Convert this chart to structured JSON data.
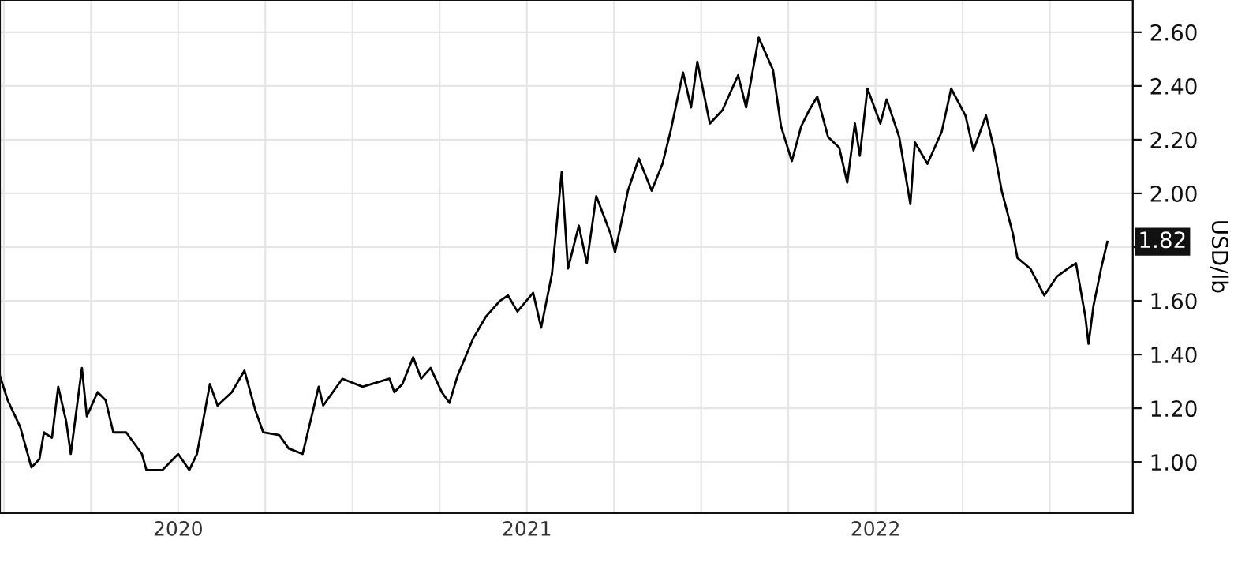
{
  "chart_data": {
    "type": "line",
    "x": [
      2019.989,
      2020.011,
      2020.047,
      2020.079,
      2020.102,
      2020.115,
      2020.138,
      2020.156,
      2020.179,
      2020.192,
      2020.224,
      2020.238,
      2020.269,
      2020.292,
      2020.314,
      2020.351,
      2020.396,
      2020.409,
      2020.455,
      2020.5,
      2020.532,
      2020.554,
      2020.591,
      2020.613,
      2020.654,
      2020.69,
      2020.722,
      2020.744,
      2020.79,
      2020.817,
      2020.857,
      2020.903,
      2020.916,
      2020.971,
      2021.029,
      2021.106,
      2021.12,
      2021.143,
      2021.174,
      2021.197,
      2021.224,
      2021.256,
      2021.278,
      2021.301,
      2021.346,
      2021.382,
      2021.423,
      2021.446,
      2021.473,
      2021.518,
      2021.541,
      2021.572,
      2021.6,
      2021.618,
      2021.649,
      2021.672,
      2021.699,
      2021.74,
      2021.753,
      2021.79,
      2021.821,
      2021.858,
      2021.889,
      2021.912,
      2021.948,
      2021.971,
      2021.989,
      2022.025,
      2022.061,
      2022.106,
      2022.129,
      2022.165,
      2022.206,
      2022.229,
      2022.26,
      2022.287,
      2022.31,
      2022.333,
      2022.364,
      2022.396,
      2022.419,
      2022.441,
      2022.455,
      2022.477,
      2022.514,
      2022.532,
      2022.568,
      2022.6,
      2022.613,
      2022.649,
      2022.69,
      2022.717,
      2022.758,
      2022.781,
      2022.817,
      2022.839,
      2022.862,
      2022.894,
      2022.907,
      2022.944,
      2022.984,
      2023.02,
      2023.052,
      2023.075,
      2023.102,
      2023.111,
      2023.125,
      2023.147,
      2023.165
    ],
    "series": [
      {
        "color": "#000000",
        "values": [
          1.32,
          1.23,
          1.13,
          0.98,
          1.01,
          1.11,
          1.09,
          1.28,
          1.15,
          1.03,
          1.35,
          1.17,
          1.26,
          1.23,
          1.11,
          1.11,
          1.03,
          0.97,
          0.97,
          1.03,
          0.97,
          1.03,
          1.29,
          1.21,
          1.26,
          1.34,
          1.19,
          1.11,
          1.1,
          1.05,
          1.03,
          1.28,
          1.21,
          1.31,
          1.28,
          1.31,
          1.26,
          1.29,
          1.39,
          1.31,
          1.35,
          1.26,
          1.22,
          1.32,
          1.46,
          1.54,
          1.6,
          1.62,
          1.56,
          1.63,
          1.5,
          1.7,
          2.08,
          1.72,
          1.88,
          1.74,
          1.99,
          1.85,
          1.78,
          2.01,
          2.13,
          2.01,
          2.11,
          2.23,
          2.45,
          2.32,
          2.49,
          2.26,
          2.31,
          2.44,
          2.32,
          2.58,
          2.46,
          2.25,
          2.12,
          2.25,
          2.31,
          2.36,
          2.21,
          2.17,
          2.04,
          2.26,
          2.14,
          2.39,
          2.26,
          2.35,
          2.21,
          1.96,
          2.19,
          2.11,
          2.23,
          2.39,
          2.29,
          2.16,
          2.29,
          2.17,
          2.01,
          1.85,
          1.76,
          1.72,
          1.62,
          1.69,
          1.72,
          1.74,
          1.54,
          1.44,
          1.58,
          1.72,
          1.82
        ]
      }
    ],
    "ylabel": "USD/lb",
    "xlim": [
      2019.989,
      2023.238
    ],
    "ylim": [
      0.81,
      2.72
    ],
    "xticks": [
      {
        "value": 2020.0,
        "label": null
      },
      {
        "value": 2020.25,
        "label": null
      },
      {
        "value": 2020.5,
        "label": "2020"
      },
      {
        "value": 2020.75,
        "label": null
      },
      {
        "value": 2021.0,
        "label": null
      },
      {
        "value": 2021.25,
        "label": null
      },
      {
        "value": 2021.5,
        "label": "2021"
      },
      {
        "value": 2021.75,
        "label": null
      },
      {
        "value": 2022.0,
        "label": null
      },
      {
        "value": 2022.25,
        "label": null
      },
      {
        "value": 2022.5,
        "label": "2022"
      },
      {
        "value": 2022.75,
        "label": null
      },
      {
        "value": 2023.0,
        "label": null
      }
    ],
    "yticks": [
      {
        "value": 1.0,
        "label": "1.00"
      },
      {
        "value": 1.2,
        "label": "1.20"
      },
      {
        "value": 1.4,
        "label": "1.40"
      },
      {
        "value": 1.6,
        "label": "1.60"
      },
      {
        "value": 1.8,
        "label": null
      },
      {
        "value": 2.0,
        "label": "2.00"
      },
      {
        "value": 2.2,
        "label": "2.20"
      },
      {
        "value": 2.4,
        "label": "2.40"
      },
      {
        "value": 2.6,
        "label": "2.60"
      }
    ],
    "annotations": [
      {
        "text": "1.82",
        "x": 2023.165,
        "y": 1.82
      }
    ],
    "grid": true,
    "line_style": "solid"
  }
}
